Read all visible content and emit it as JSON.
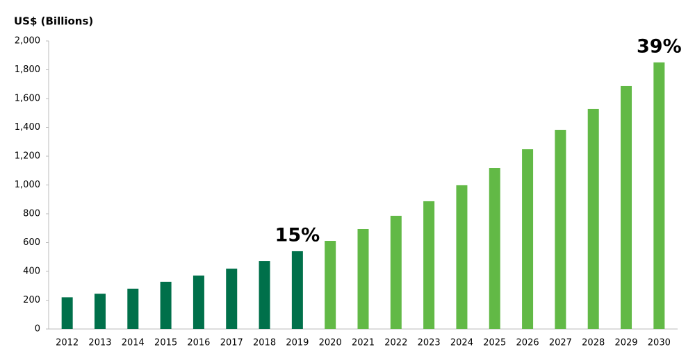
{
  "chart_data": {
    "type": "bar",
    "y_label": "US$ (Billions)",
    "categories": [
      "2012",
      "2013",
      "2014",
      "2015",
      "2016",
      "2017",
      "2018",
      "2019",
      "2020",
      "2021",
      "2022",
      "2023",
      "2024",
      "2025",
      "2026",
      "2027",
      "2028",
      "2029",
      "2030"
    ],
    "series": [
      {
        "color": "#00704a",
        "values": [
          220,
          245,
          280,
          328,
          371,
          419,
          472,
          540,
          null,
          null,
          null,
          null,
          null,
          null,
          null,
          null,
          null,
          null,
          null
        ]
      },
      {
        "color": "#62b946",
        "values": [
          null,
          null,
          null,
          null,
          null,
          null,
          null,
          null,
          612,
          694,
          786,
          887,
          998,
          1118,
          1248,
          1383,
          1528,
          1687,
          1851
        ]
      }
    ],
    "annotations": [
      "15%",
      "39%"
    ],
    "ylim": [
      0,
      2000
    ],
    "yticks": [
      0,
      200,
      400,
      600,
      800,
      {
        "value": 1000,
        "label": "1,000"
      },
      {
        "value": 1200,
        "label": "1,200"
      },
      {
        "value": 1400,
        "label": "1,400"
      },
      {
        "value": 1600,
        "label": "1,600"
      },
      {
        "value": 1800,
        "label": "1,800"
      },
      {
        "value": 2000,
        "label": "2,000"
      }
    ],
    "grid": false
  }
}
